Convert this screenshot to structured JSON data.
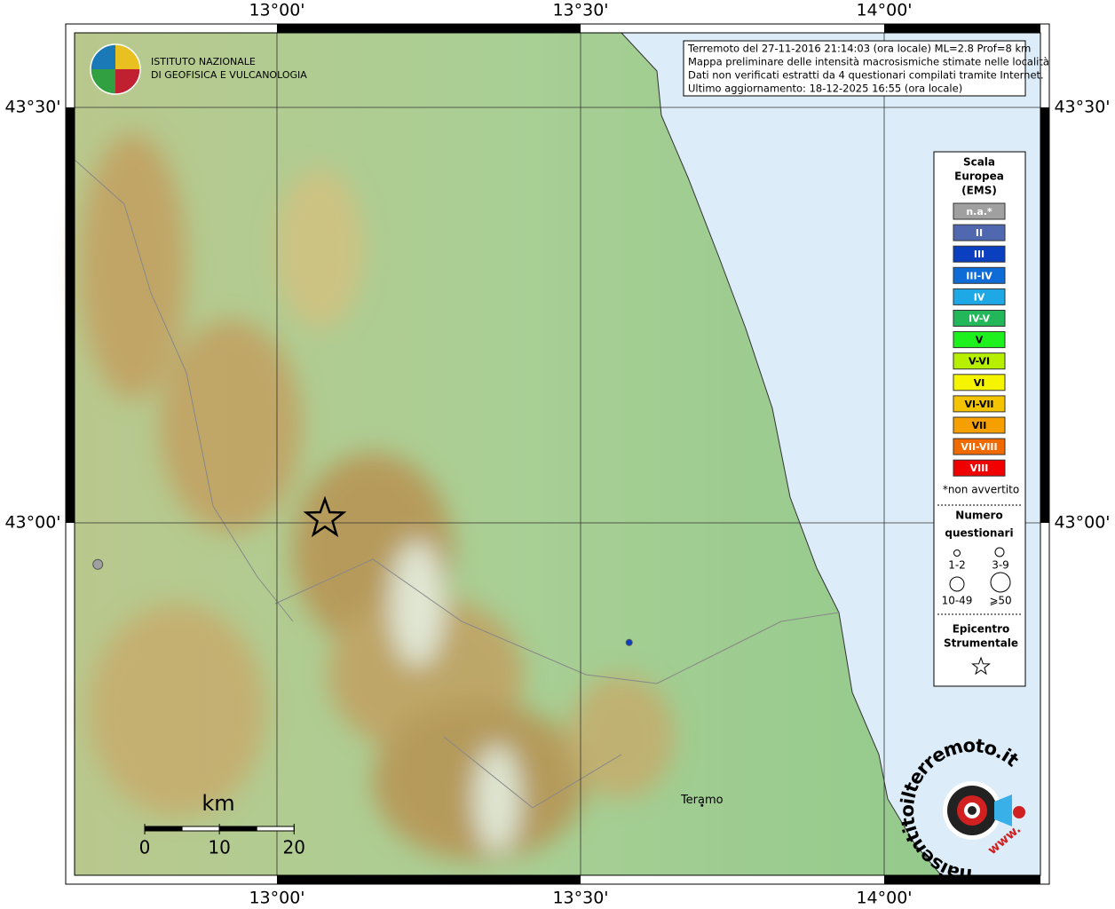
{
  "header": {
    "info": [
      "Terremoto del 27-11-2016 21:14:03 (ora locale) ML=2.8 Prof=8 km",
      "Mappa preliminare delle intensità macrosismiche stimate nelle località",
      "Dati non verificati estratti da 4 questionari compilati tramite Internet.",
      "Ultimo aggiornamento: 18-12-2025 16:55 (ora locale)"
    ]
  },
  "logo": {
    "lines": [
      "ISTITUTO NAZIONALE",
      "DI GEOFISICA E VULCANOLOGIA"
    ]
  },
  "map": {
    "xlim": [
      12.6667,
      14.2573
    ],
    "ylim": [
      42.5759,
      43.5897
    ],
    "xticks": [
      {
        "value": 13,
        "label": "13°00'"
      },
      {
        "value": 13.5,
        "label": "13°30'"
      },
      {
        "value": 14,
        "label": "14°00'"
      }
    ],
    "yticks": [
      {
        "value": 43,
        "label": "43°00'"
      },
      {
        "value": 43.5,
        "label": "43°30'"
      }
    ],
    "points": [
      {
        "lon": 12.705,
        "lat": 42.95,
        "color": "#a0a0a0"
      },
      {
        "lon": 13.58,
        "lat": 42.856,
        "color": "#0a3fbf"
      }
    ],
    "epicenter": {
      "lon": 13.079,
      "lat": 43.005
    },
    "places": [
      {
        "name": "Teramo",
        "lon": 13.7,
        "lat": 42.66
      }
    ]
  },
  "legend": {
    "title": [
      "Scala",
      "Europea",
      "(EMS)"
    ],
    "items": [
      {
        "label": "n.a.*",
        "color": "#a0a0a0"
      },
      {
        "label": "II",
        "color": "#4f68b0"
      },
      {
        "label": "III",
        "color": "#0a3fbf"
      },
      {
        "label": "III-IV",
        "color": "#0f6cd6"
      },
      {
        "label": "IV",
        "color": "#1fa8e6"
      },
      {
        "label": "IV-V",
        "color": "#22b85a"
      },
      {
        "label": "V",
        "color": "#1ef01e"
      },
      {
        "label": "V-VI",
        "color": "#b6ef00"
      },
      {
        "label": "VI",
        "color": "#f5f500"
      },
      {
        "label": "VI-VII",
        "color": "#f5c400"
      },
      {
        "label": "VII",
        "color": "#f5a000"
      },
      {
        "label": "VII-VIII",
        "color": "#f06a00"
      },
      {
        "label": "VIII",
        "color": "#f00000"
      }
    ],
    "note": "*non avvertito",
    "count_title": [
      "Numero",
      "questionari"
    ],
    "count_sizes": [
      "1-2",
      "3-9",
      "10-49",
      "⩾50"
    ],
    "epicenter_title": [
      "Epicentro",
      "Strumentale"
    ]
  },
  "scale_bar": {
    "unit": "km",
    "ticks": [
      0,
      10,
      20
    ]
  },
  "site_logo": {
    "text": "haisentitoilterremoto.it",
    "url": "www."
  }
}
